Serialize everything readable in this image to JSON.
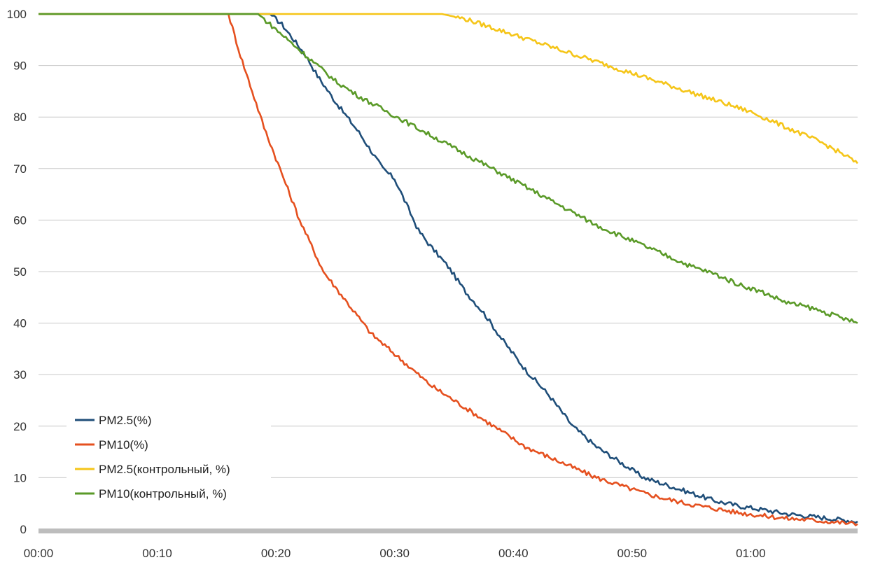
{
  "chart_data": {
    "type": "line",
    "title": "",
    "xlabel": "",
    "ylabel": "",
    "x_unit": "minutes",
    "xlim": [
      0,
      69
    ],
    "ylim": [
      0,
      100
    ],
    "grid": "horizontal",
    "legend_position": "bottom-left",
    "y_ticks": [
      "0",
      "10",
      "20",
      "30",
      "40",
      "50",
      "60",
      "70",
      "80",
      "90",
      "100"
    ],
    "x_ticks": [
      "00:00",
      "00:10",
      "00:20",
      "00:30",
      "00:40",
      "00:50",
      "01:00"
    ],
    "series": [
      {
        "name": "PM2.5(%)",
        "color": "#1f4e79",
        "x": [
          0,
          19.5,
          20.5,
          21.5,
          22.5,
          23.5,
          25,
          27,
          29,
          30,
          31,
          32,
          33,
          34.5,
          36,
          37.5,
          39,
          41,
          43,
          45,
          47,
          49,
          51,
          53,
          55,
          57,
          59,
          61,
          63,
          65,
          67,
          69
        ],
        "y": [
          100,
          100,
          98,
          95,
          92,
          88,
          83,
          77,
          70,
          68,
          63,
          58,
          55,
          51,
          46,
          42,
          37,
          31,
          26,
          20,
          16,
          13,
          10,
          8.5,
          7,
          5.5,
          4.5,
          3.8,
          3,
          2.5,
          2,
          1.5
        ]
      },
      {
        "name": "PM10(%)",
        "color": "#e5501f",
        "x": [
          0,
          16,
          16.5,
          17,
          18,
          19,
          20,
          21,
          22,
          23,
          24,
          25,
          26,
          27,
          28,
          29,
          30,
          31,
          32,
          33,
          35,
          37,
          39,
          41,
          43,
          45,
          47,
          49,
          51,
          53,
          55,
          57,
          59,
          61,
          63,
          65,
          67,
          69
        ],
        "y": [
          100,
          100,
          96,
          92,
          85,
          78,
          72,
          66,
          60,
          55,
          50,
          47,
          44,
          41,
          38,
          36,
          34,
          32,
          30,
          28,
          25,
          22,
          19,
          16,
          14,
          12,
          10,
          8.5,
          7,
          5.8,
          4.8,
          4,
          3.2,
          2.6,
          2.1,
          1.8,
          1.4,
          1
        ]
      },
      {
        "name": "PM2.5(контрольный, %)",
        "color": "#f5c518",
        "x": [
          0,
          34,
          36,
          38,
          40,
          42,
          44,
          46,
          48,
          50,
          52,
          54,
          56,
          58,
          60,
          62,
          64,
          66,
          68,
          69
        ],
        "y": [
          100,
          100,
          99,
          97.5,
          96,
          94.5,
          93,
          91.5,
          90,
          88.5,
          87,
          85.5,
          84,
          82.5,
          81,
          79,
          77,
          75,
          72.5,
          71
        ]
      },
      {
        "name": "PM10(контрольный, %)",
        "color": "#5a9a28",
        "x": [
          0,
          18.5,
          19.5,
          21,
          23,
          25,
          27,
          29,
          31,
          33,
          35,
          37,
          39,
          41,
          43,
          45,
          47,
          49,
          51,
          53,
          55,
          57,
          59,
          61,
          63,
          65,
          67,
          69
        ],
        "y": [
          100,
          100,
          98,
          95,
          91,
          87,
          84,
          81.5,
          79,
          76.5,
          74,
          71.5,
          69,
          66.5,
          64,
          61.5,
          59,
          57,
          55,
          53,
          51,
          49.5,
          47.5,
          46,
          44,
          43,
          41.5,
          40
        ]
      }
    ]
  }
}
